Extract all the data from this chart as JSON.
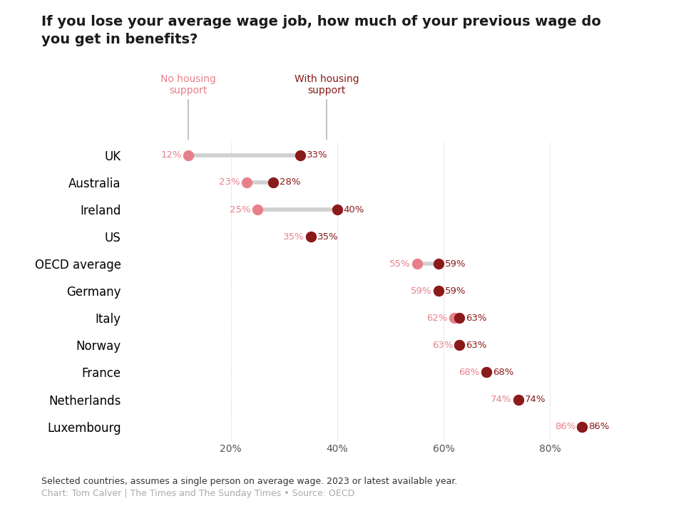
{
  "title": "If you lose your average wage job, how much of your previous wage do\nyou get in benefits?",
  "countries": [
    "UK",
    "Australia",
    "Ireland",
    "US",
    "OECD average",
    "Germany",
    "Italy",
    "Norway",
    "France",
    "Netherlands",
    "Luxembourg"
  ],
  "no_housing": [
    12,
    23,
    25,
    35,
    55,
    59,
    62,
    63,
    68,
    74,
    86
  ],
  "with_housing": [
    33,
    28,
    40,
    35,
    59,
    59,
    63,
    63,
    68,
    74,
    86
  ],
  "color_no_housing": "#e8808a",
  "color_with_housing": "#8b1a1a",
  "connector_color": "#d0d0d0",
  "label_no_housing": "No housing\nsupport",
  "label_with_housing": "With housing\nsupport",
  "annotation_color_no": "#e8808a",
  "annotation_color_with": "#8b1a1a",
  "footnote1": "Selected countries, assumes a single person on average wage. 2023 or latest available year.",
  "footnote2": "Chart: Tom Calver | The Times and The Sunday Times • Source: OECD",
  "xlim": [
    0,
    100
  ],
  "xticks": [
    20,
    40,
    60,
    80
  ],
  "background_color": "#ffffff",
  "dot_size": 100,
  "connector_linewidth": 4
}
